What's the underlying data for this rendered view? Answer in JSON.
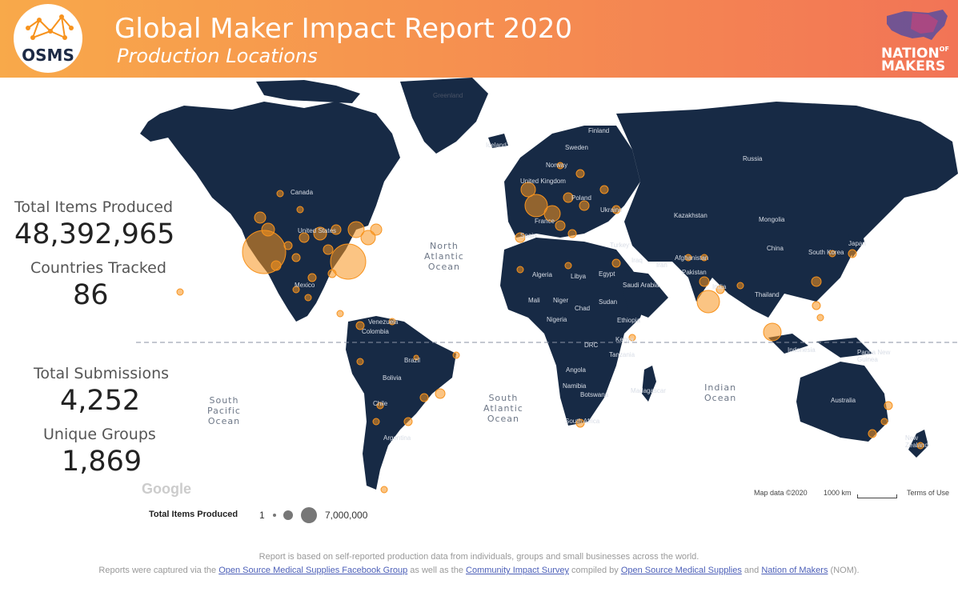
{
  "header": {
    "logo_text": "OSMS",
    "title": "Global Maker Impact Report 2020",
    "subtitle": "Production Locations",
    "partner_logo_line1": "NATION",
    "partner_logo_of": "OF",
    "partner_logo_line2": "MAKERS"
  },
  "stats": {
    "total_items_label": "Total Items Produced",
    "total_items_value": "48,392,965",
    "countries_label": "Countries Tracked",
    "countries_value": "86",
    "submissions_label": "Total Submissions",
    "submissions_value": "4,252",
    "groups_label": "Unique Groups",
    "groups_value": "1,869"
  },
  "map": {
    "oceans": {
      "north_atlantic": "North\nAtlantic\nOcean",
      "south_atlantic": "South\nAtlantic\nOcean",
      "south_pacific": "South\nPacific\nOcean",
      "indian": "Indian\nOcean"
    },
    "countries": {
      "greenland": "Greenland",
      "iceland": "Iceland",
      "finland": "Finland",
      "sweden": "Sweden",
      "norway": "Norway",
      "russia": "Russia",
      "canada": "Canada",
      "united_states": "United States",
      "mexico": "Mexico",
      "venezuela": "Venezuela",
      "colombia": "Colombia",
      "brazil": "Brazil",
      "bolivia": "Bolivia",
      "chile": "Chile",
      "argentina": "Argentina",
      "united_kingdom": "United Kingdom",
      "poland": "Poland",
      "ukraine": "Ukraine",
      "kazakhstan": "Kazakhstan",
      "mongolia": "Mongolia",
      "china": "China",
      "turkey": "Turkey",
      "iraq": "Iraq",
      "iran": "Iran",
      "afghanistan": "Afghanistan",
      "pakistan": "Pakistan",
      "india": "India",
      "south_korea": "South Korea",
      "japan": "Japan",
      "thailand": "Thailand",
      "algeria": "Algeria",
      "libya": "Libya",
      "egypt": "Egypt",
      "saudi_arabia": "Saudi Arabia",
      "mali": "Mali",
      "niger": "Niger",
      "chad": "Chad",
      "sudan": "Sudan",
      "nigeria": "Nigeria",
      "ethiopia": "Ethiopia",
      "kenya": "Kenya",
      "drc": "DRC",
      "tanzania": "Tanzania",
      "angola": "Angola",
      "namibia": "Namibia",
      "botswana": "Botswana",
      "madagascar": "Madagascar",
      "south_africa": "South Africa",
      "indonesia": "Indonesia",
      "papua_new_guinea": "Papua New Guinea",
      "australia": "Australia",
      "new_zealand": "New Zealand",
      "spain": "Spain",
      "france": "France"
    },
    "google_mark": "Google",
    "map_data": "Map data ©2020",
    "scale": "1000 km",
    "terms": "Terms of Use"
  },
  "legend": {
    "title": "Total Items Produced",
    "min": "1",
    "max": "7,000,000"
  },
  "footer": {
    "line1": "Report is based on self-reported production data from individuals, groups and small businesses across the world.",
    "prefix": "Reports were captured via the ",
    "link1": "Open Source Medical Supplies Facebook Group",
    "mid1": " as well as the ",
    "link2": "Community Impact Survey",
    "mid2": " compiled by ",
    "link3": "Open Source Medical Supplies",
    "mid3": " and ",
    "link4": "Nation of Makers",
    "suffix": " (NOM)."
  },
  "colors": {
    "land": "#172a45",
    "marker": "#f7931e",
    "header_left": "#f8a94a",
    "header_right": "#f27456"
  }
}
